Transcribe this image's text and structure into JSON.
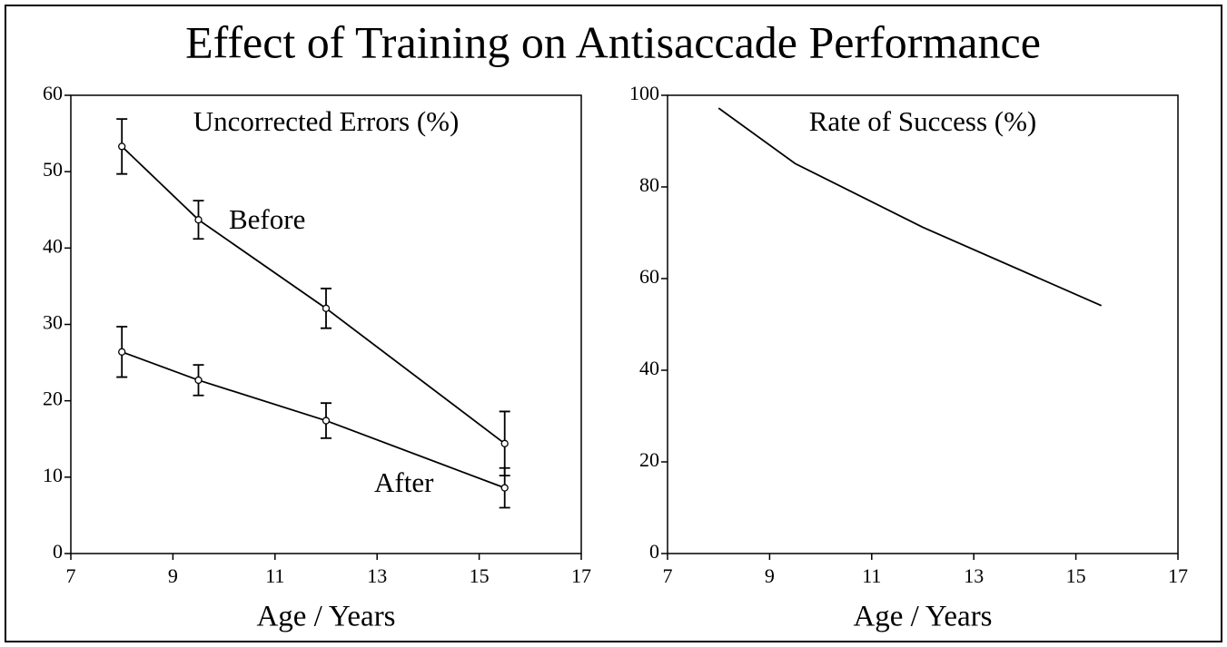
{
  "title": "Effect of Training on Antisaccade Performance",
  "chart_data": [
    {
      "type": "line",
      "title": "Uncorrected Errors (%)",
      "xlabel": "Age / Years",
      "x": [
        8,
        9.5,
        12,
        15.5
      ],
      "series": [
        {
          "name": "Before",
          "color": "#000000",
          "values": [
            53.3,
            43.7,
            32.1,
            14.4
          ],
          "errors": [
            3.6,
            2.5,
            2.6,
            4.2
          ]
        },
        {
          "name": "After",
          "color": "#000000",
          "values": [
            26.4,
            22.7,
            17.4,
            8.6
          ],
          "errors": [
            3.3,
            2.0,
            2.3,
            2.6
          ]
        }
      ],
      "xlim": [
        7,
        17
      ],
      "xticks": [
        7,
        9,
        11,
        13,
        15,
        17
      ],
      "ylim": [
        0,
        60
      ],
      "yticks": [
        0,
        10,
        20,
        30,
        40,
        50,
        60
      ]
    },
    {
      "type": "line",
      "title": "Rate of Success (%)",
      "xlabel": "Age / Years",
      "x": [
        8,
        9.5,
        12,
        15.5
      ],
      "color": "#000000",
      "values": [
        97.2,
        85.1,
        71.2,
        54.1
      ],
      "xlim": [
        7,
        17
      ],
      "xticks": [
        7,
        9,
        11,
        13,
        15,
        17
      ],
      "ylim": [
        0,
        100
      ],
      "yticks": [
        0,
        20,
        40,
        60,
        80,
        100
      ]
    }
  ]
}
